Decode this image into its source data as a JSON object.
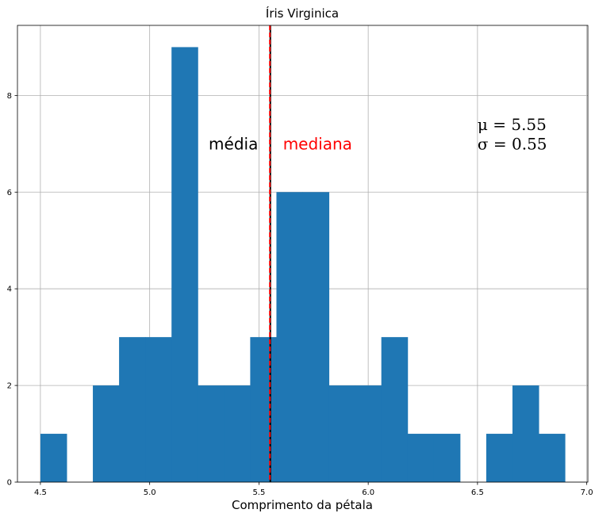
{
  "chart_data": {
    "type": "bar",
    "title": "Íris Virginica",
    "xlabel": "Comprimento da pétala",
    "ylabel": "",
    "xlim": [
      4.395,
      7.005
    ],
    "ylim": [
      0,
      9.45
    ],
    "grid": true,
    "bar_color": "#1f77b4",
    "bins": [
      {
        "x0": 4.5,
        "x1": 4.62,
        "count": 1
      },
      {
        "x0": 4.62,
        "x1": 4.74,
        "count": 0
      },
      {
        "x0": 4.74,
        "x1": 4.86,
        "count": 2
      },
      {
        "x0": 4.86,
        "x1": 4.98,
        "count": 3
      },
      {
        "x0": 4.98,
        "x1": 5.1,
        "count": 3
      },
      {
        "x0": 5.1,
        "x1": 5.22,
        "count": 9
      },
      {
        "x0": 5.22,
        "x1": 5.34,
        "count": 2
      },
      {
        "x0": 5.34,
        "x1": 5.46,
        "count": 2
      },
      {
        "x0": 5.46,
        "x1": 5.58,
        "count": 3
      },
      {
        "x0": 5.58,
        "x1": 5.7,
        "count": 6
      },
      {
        "x0": 5.7,
        "x1": 5.82,
        "count": 6
      },
      {
        "x0": 5.82,
        "x1": 5.94,
        "count": 2
      },
      {
        "x0": 5.94,
        "x1": 6.06,
        "count": 2
      },
      {
        "x0": 6.06,
        "x1": 6.18,
        "count": 3
      },
      {
        "x0": 6.18,
        "x1": 6.3,
        "count": 1
      },
      {
        "x0": 6.3,
        "x1": 6.42,
        "count": 1
      },
      {
        "x0": 6.42,
        "x1": 6.54,
        "count": 0
      },
      {
        "x0": 6.54,
        "x1": 6.66,
        "count": 1
      },
      {
        "x0": 6.66,
        "x1": 6.78,
        "count": 2
      },
      {
        "x0": 6.78,
        "x1": 6.9,
        "count": 1
      }
    ],
    "x_ticks": [
      {
        "value": 4.5,
        "label": "4.5"
      },
      {
        "value": 5.0,
        "label": "5.0"
      },
      {
        "value": 5.5,
        "label": "5.5"
      },
      {
        "value": 6.0,
        "label": "6.0"
      },
      {
        "value": 6.5,
        "label": "6.5"
      },
      {
        "value": 7.0,
        "label": "7.0"
      }
    ],
    "y_ticks": [
      {
        "value": 0,
        "label": "0"
      },
      {
        "value": 2,
        "label": "2"
      },
      {
        "value": 4,
        "label": "4"
      },
      {
        "value": 6,
        "label": "6"
      },
      {
        "value": 8,
        "label": "8"
      }
    ],
    "mean_line": {
      "value": 5.552,
      "color": "#000000",
      "style": "solid"
    },
    "median_line": {
      "value": 5.55,
      "color": "#ff0000",
      "style": "dashed"
    },
    "annotations": [
      {
        "text": "média",
        "x": 5.27,
        "y": 7.0,
        "color": "#000000"
      },
      {
        "text": "mediana",
        "x": 5.61,
        "y": 7.0,
        "color": "#ff0000"
      }
    ],
    "stats": {
      "mu_line": "μ = 5.55",
      "sigma_line": "σ = 0.55",
      "x": 6.5,
      "y_top": 7.4,
      "y_bottom": 7.0
    }
  }
}
